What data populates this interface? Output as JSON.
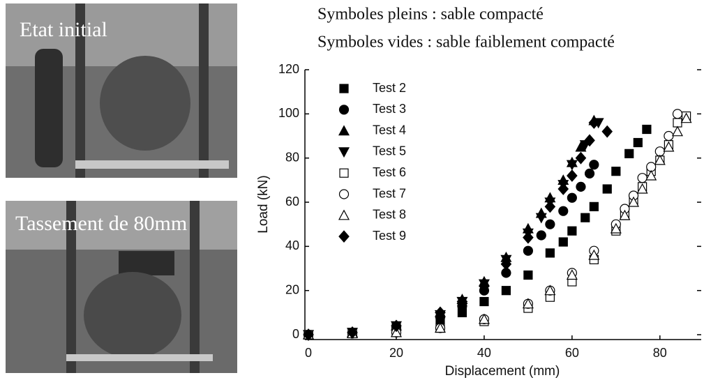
{
  "chart_data": {
    "type": "scatter",
    "annotations": [
      "Symboles pleins : sable compacté",
      "Symboles vides : sable faiblement compacté"
    ],
    "photos": [
      "Etat initial",
      "Tassement de 80mm"
    ],
    "xlabel": "Displacement (mm)",
    "ylabel": "Load (kN)",
    "xlim": [
      -0.8,
      89.4
    ],
    "ylim": [
      -2.2,
      120
    ],
    "xticks": [
      0,
      20,
      40,
      60,
      80
    ],
    "yticks": [
      0,
      20,
      40,
      60,
      80,
      100,
      120
    ],
    "color": "#000000",
    "legend": "upper-left",
    "series": [
      {
        "name": "Test 2",
        "marker": "square",
        "filled": true,
        "x": [
          0,
          10,
          20,
          30,
          35,
          40,
          45,
          50,
          55,
          58,
          60,
          63,
          65,
          68,
          70,
          73,
          75,
          77
        ],
        "values": [
          0,
          1,
          3,
          7,
          10,
          15,
          20,
          27,
          37,
          42,
          47,
          53,
          58,
          66,
          74,
          82,
          87,
          93
        ]
      },
      {
        "name": "Test 3",
        "marker": "circle",
        "filled": true,
        "x": [
          0,
          10,
          20,
          30,
          35,
          40,
          45,
          50,
          53,
          55,
          58,
          60,
          62,
          64,
          65
        ],
        "values": [
          0,
          1,
          3,
          8,
          13,
          20,
          28,
          38,
          45,
          50,
          56,
          62,
          67,
          73,
          77
        ]
      },
      {
        "name": "Test 4",
        "marker": "triangle-up",
        "filled": true,
        "x": [
          0,
          10,
          20,
          30,
          35,
          40,
          45,
          50,
          53,
          55,
          58,
          60,
          62,
          65
        ],
        "values": [
          0,
          1,
          4,
          10,
          16,
          24,
          35,
          48,
          55,
          62,
          70,
          78,
          85,
          97
        ]
      },
      {
        "name": "Test 5",
        "marker": "triangle-down",
        "filled": true,
        "x": [
          0,
          10,
          20,
          30,
          35,
          40,
          45,
          50,
          53,
          55,
          58,
          60,
          63,
          66
        ],
        "values": [
          0,
          1,
          4,
          9,
          15,
          23,
          34,
          46,
          53,
          60,
          68,
          77,
          86,
          96
        ]
      },
      {
        "name": "Test 6",
        "marker": "square",
        "filled": false,
        "x": [
          0,
          10,
          20,
          30,
          40,
          50,
          55,
          60,
          65,
          70,
          72,
          74,
          76,
          78,
          80,
          82,
          84,
          86
        ],
        "values": [
          0,
          0.5,
          1,
          3,
          6,
          12,
          17,
          24,
          34,
          47,
          54,
          61,
          67,
          74,
          79,
          86,
          96,
          99
        ]
      },
      {
        "name": "Test 7",
        "marker": "circle",
        "filled": false,
        "x": [
          0,
          10,
          20,
          30,
          40,
          50,
          55,
          60,
          65,
          70,
          72,
          74,
          76,
          78,
          80,
          82,
          84
        ],
        "values": [
          0,
          0.5,
          1,
          3,
          7,
          14,
          20,
          28,
          38,
          50,
          57,
          63,
          71,
          76,
          83,
          90,
          100
        ]
      },
      {
        "name": "Test 8",
        "marker": "triangle-up",
        "filled": false,
        "x": [
          0,
          10,
          20,
          30,
          40,
          50,
          55,
          60,
          65,
          70,
          72,
          74,
          76,
          78,
          80,
          82,
          84,
          86
        ],
        "values": [
          0,
          0.5,
          1,
          3,
          7,
          14,
          20,
          27,
          36,
          48,
          54,
          60,
          66,
          72,
          79,
          85,
          92,
          98
        ]
      },
      {
        "name": "Test 9",
        "marker": "diamond",
        "filled": true,
        "x": [
          0,
          10,
          20,
          30,
          35,
          40,
          45,
          50,
          55,
          58,
          60,
          62,
          64,
          65,
          68
        ],
        "values": [
          0,
          1,
          4,
          10,
          15,
          22,
          32,
          44,
          58,
          66,
          72,
          80,
          88,
          96,
          92
        ]
      }
    ]
  }
}
